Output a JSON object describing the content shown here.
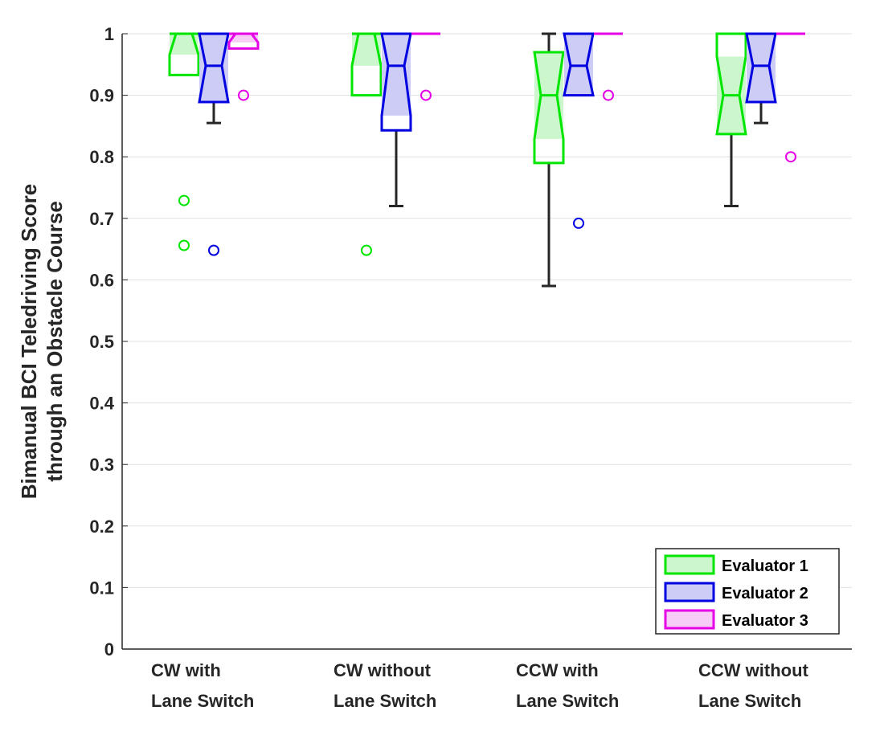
{
  "chart_data": {
    "type": "boxplot",
    "title": "",
    "ylabel": [
      "Bimanual BCI Teledriving Score",
      "through an Obstacle Course"
    ],
    "ylim": [
      0,
      1
    ],
    "yticks": [
      0,
      0.1,
      0.2,
      0.3,
      0.4,
      0.5,
      0.6,
      0.7,
      0.8,
      0.9,
      1
    ],
    "ytick_labels": [
      "0",
      "0.1",
      "0.2",
      "0.3",
      "0.4",
      "0.5",
      "0.6",
      "0.7",
      "0.8",
      "0.9",
      "1"
    ],
    "grid": true,
    "legend_position": "bottom-right",
    "categories": [
      [
        "CW with",
        "Lane Switch"
      ],
      [
        "CW without",
        "Lane Switch"
      ],
      [
        "CCW with",
        "Lane Switch"
      ],
      [
        "CCW without",
        "Lane Switch"
      ]
    ],
    "series": [
      {
        "name": "Evaluator 1",
        "color": "#00e600",
        "fill": "#ccf7cc",
        "boxes": [
          {
            "q1": 0.933,
            "median": 1.0,
            "q3": 1.0,
            "notch_low": 0.966,
            "notch_high": 1.0,
            "whisker_low": 0.933,
            "whisker_high": 1.0,
            "outliers": [
              0.729,
              0.656
            ]
          },
          {
            "q1": 0.9,
            "median": 1.0,
            "q3": 1.0,
            "notch_low": 0.948,
            "notch_high": 1.0,
            "whisker_low": 0.9,
            "whisker_high": 1.0,
            "outliers": [
              0.648
            ]
          },
          {
            "q1": 0.79,
            "median": 0.9,
            "q3": 0.97,
            "notch_low": 0.829,
            "notch_high": 0.971,
            "whisker_low": 0.59,
            "whisker_high": 1.0,
            "outliers": []
          },
          {
            "q1": 0.837,
            "median": 0.9,
            "q3": 1.0,
            "notch_low": 0.837,
            "notch_high": 0.963,
            "whisker_low": 0.72,
            "whisker_high": 1.0,
            "outliers": []
          }
        ]
      },
      {
        "name": "Evaluator 2",
        "color": "#0000e0",
        "fill": "#ccccf7",
        "boxes": [
          {
            "q1": 0.889,
            "median": 0.948,
            "q3": 1.0,
            "notch_low": 0.889,
            "notch_high": 1.0,
            "whisker_low": 0.855,
            "whisker_high": 1.0,
            "outliers": [
              0.648
            ]
          },
          {
            "q1": 0.843,
            "median": 0.948,
            "q3": 1.0,
            "notch_low": 0.867,
            "notch_high": 1.0,
            "whisker_low": 0.72,
            "whisker_high": 1.0,
            "outliers": []
          },
          {
            "q1": 0.9,
            "median": 0.948,
            "q3": 1.0,
            "notch_low": 0.9,
            "notch_high": 1.0,
            "whisker_low": 0.9,
            "whisker_high": 1.0,
            "outliers": [
              0.692
            ]
          },
          {
            "q1": 0.889,
            "median": 0.948,
            "q3": 1.0,
            "notch_low": 0.889,
            "notch_high": 1.0,
            "whisker_low": 0.855,
            "whisker_high": 1.0,
            "outliers": []
          }
        ]
      },
      {
        "name": "Evaluator 3",
        "color": "#e600e6",
        "fill": "#f7ccf7",
        "boxes": [
          {
            "q1": 0.976,
            "median": 1.0,
            "q3": 1.0,
            "notch_low": 0.986,
            "notch_high": 1.0,
            "whisker_low": 0.976,
            "whisker_high": 1.0,
            "outliers": [
              0.9
            ]
          },
          {
            "q1": 1.0,
            "median": 1.0,
            "q3": 1.0,
            "notch_low": 1.0,
            "notch_high": 1.0,
            "whisker_low": 1.0,
            "whisker_high": 1.0,
            "outliers": [
              0.9
            ]
          },
          {
            "q1": 1.0,
            "median": 1.0,
            "q3": 1.0,
            "notch_low": 1.0,
            "notch_high": 1.0,
            "whisker_low": 1.0,
            "whisker_high": 1.0,
            "outliers": [
              0.9
            ]
          },
          {
            "q1": 1.0,
            "median": 1.0,
            "q3": 1.0,
            "notch_low": 1.0,
            "notch_high": 1.0,
            "whisker_low": 1.0,
            "whisker_high": 1.0,
            "outliers": [
              0.8
            ]
          }
        ]
      }
    ],
    "whisker_color": "#262626",
    "grid_color": "#e0e0e0",
    "axis_color": "#262626"
  }
}
